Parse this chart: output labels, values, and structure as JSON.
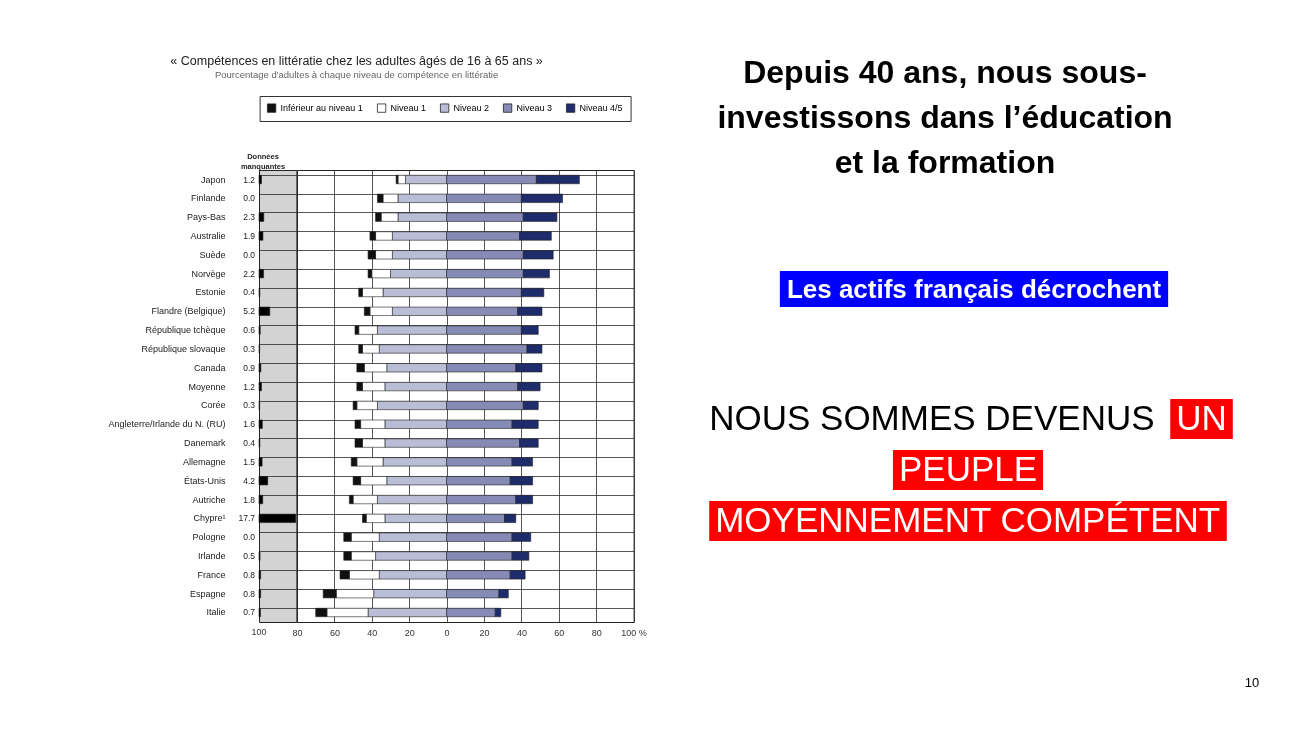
{
  "chart_data": [
    {
      "type": "bar",
      "orientation": "horizontal",
      "categories": [
        "Japon",
        "Finlande",
        "Pays-Bas",
        "Australie",
        "Suède",
        "Norvège",
        "Estonie",
        "Flandre (Belgique)",
        "République tchèque",
        "République slovaque",
        "Canada",
        "Moyenne",
        "Corée",
        "Angleterre/Irlande du N. (RU)",
        "Danemark",
        "Allemagne",
        "États-Unis",
        "Autriche",
        "Chypre¹",
        "Pologne",
        "Irlande",
        "France",
        "Espagne",
        "Italie"
      ],
      "series": [
        {
          "name": "Données manquantes",
          "color": "#000000",
          "values": [
            1.2,
            0.0,
            2.3,
            1.9,
            0.0,
            2.2,
            0.4,
            5.2,
            0.6,
            0.3,
            0.9,
            1.2,
            0.3,
            1.6,
            0.4,
            1.5,
            4.2,
            1.8,
            17.7,
            0.0,
            0.5,
            0.8,
            0.8,
            0.7
          ],
          "value_labels": [
            "1.2",
            "0.0",
            "2.3",
            "1.9",
            "0.0",
            "2.2",
            "0.4",
            "5.2",
            "0.6",
            "0.3",
            "0.9",
            "1.2",
            "0.3",
            "1.6",
            "0.4",
            "1.5",
            "4.2",
            "1.8",
            "17.7",
            "0.0",
            "0.5",
            "0.8",
            "0.8",
            "0.7"
          ]
        }
      ],
      "grid": true,
      "tick_labels": "y",
      "annotations": [
        "100"
      ]
    },
    {
      "type": "bar",
      "orientation": "horizontal",
      "stacked": true,
      "title": "« Compétences en littératie chez les adultes âgés de 16 à 65 ans »",
      "subtitle": "Pourcentage d'adultes à chaque niveau de compétence en littératie",
      "categories": [
        null,
        null,
        null,
        null,
        null,
        null,
        null,
        null,
        null,
        null,
        null,
        null,
        null,
        null,
        null,
        null,
        null,
        null,
        null,
        null,
        null,
        null,
        null,
        null
      ],
      "series": [
        {
          "name": "Niveau 2",
          "color": "#b9bdd6",
          "values": [
            -22,
            -26,
            -26,
            -29,
            -29,
            -30,
            -34,
            -29,
            -37,
            -36,
            -32,
            -33,
            -37,
            -33,
            -33,
            -34,
            -32,
            -37,
            -33,
            -36,
            -38,
            -36,
            -39,
            -42
          ]
        },
        {
          "name": "Niveau 1",
          "color": "#ffffff",
          "values": [
            -4,
            -8,
            -9,
            -9,
            -9,
            -10,
            -11,
            -12,
            -10,
            -9,
            -12,
            -12,
            -11,
            -13,
            -12,
            -14,
            -14,
            -13,
            -10,
            -15,
            -13,
            -16,
            -20,
            -22
          ]
        },
        {
          "name": "Inférieur au niveau 1",
          "color": "#111111",
          "values": [
            -1,
            -3,
            -3,
            -3,
            -4,
            -2,
            -2,
            -3,
            -2,
            -2,
            -4,
            -3,
            -2,
            -3,
            -4,
            -3,
            -4,
            -2,
            -2,
            -4,
            -4,
            -5,
            -7,
            -6
          ]
        },
        {
          "name": "Niveau 3",
          "color": "#858bb4",
          "values": [
            48,
            40,
            41,
            39,
            41,
            41,
            40,
            38,
            40,
            43,
            37,
            38,
            41,
            35,
            39,
            35,
            34,
            37,
            31,
            35,
            35,
            34,
            28,
            26
          ]
        },
        {
          "name": "Niveau 4/5",
          "color": "#1f2c6b",
          "values": [
            23,
            22,
            18,
            17,
            16,
            14,
            12,
            13,
            9,
            8,
            14,
            12,
            8,
            14,
            10,
            11,
            12,
            9,
            6,
            10,
            9,
            8,
            5,
            3
          ]
        }
      ],
      "xlim": [
        -80,
        100
      ],
      "xticks": [
        {
          "value": -80,
          "label": "80"
        },
        {
          "value": -60,
          "label": "60"
        },
        {
          "value": -40,
          "label": "40"
        },
        {
          "value": -20,
          "label": "20"
        },
        0,
        20,
        40,
        60,
        80,
        {
          "value": 100,
          "label": "100 %"
        }
      ],
      "grid": true,
      "legend": "top"
    },
    {
      "type": "other",
      "title": "Depuis 40 ans, nous sous-investissons dans l’éducation et la formation",
      "subtitle": "Les actifs français décrochent",
      "annotations": [
        "NOUS SOMMES DEVENUS",
        "UN PEUPLE MOYENNEMENT COMPÉTENT",
        "10"
      ]
    }
  ]
}
